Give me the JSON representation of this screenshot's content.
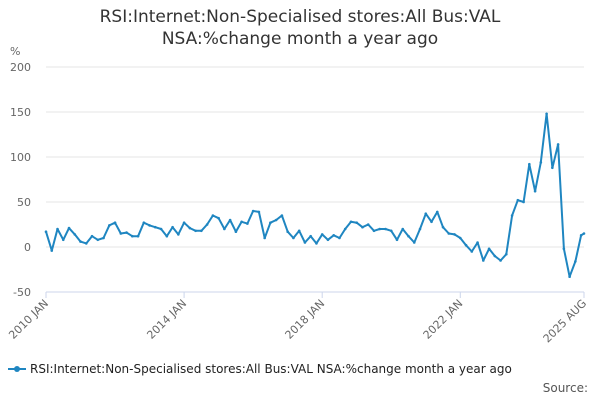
{
  "chart_data": {
    "type": "line",
    "title_line1": "RSI:Internet:Non-Specialised stores:All Bus:VAL",
    "title_line2": "NSA:%change month a year ago",
    "ylabel": "%",
    "ylim": [
      -50,
      200
    ],
    "yticks": [
      -50,
      0,
      50,
      100,
      150,
      200
    ],
    "xlim": [
      "2010-01",
      "2025-08"
    ],
    "xticks": [
      {
        "label": "2010 JAN",
        "date": "2010-01"
      },
      {
        "label": "2014 JAN",
        "date": "2014-01"
      },
      {
        "label": "2018 JAN",
        "date": "2018-01"
      },
      {
        "label": "2022 JAN",
        "date": "2022-01"
      },
      {
        "label": "2025 AUG",
        "date": "2025-08"
      }
    ],
    "grid": true,
    "legend_position": "bottom-left",
    "series": [
      {
        "name": "RSI:Internet:Non-Specialised stores:All Bus:VAL NSA:%change month a year ago",
        "color": "#1f86c1",
        "points": [
          [
            "2010-01",
            17
          ],
          [
            "2010-03",
            -4
          ],
          [
            "2010-05",
            20
          ],
          [
            "2010-07",
            8
          ],
          [
            "2010-09",
            21
          ],
          [
            "2010-11",
            14
          ],
          [
            "2011-01",
            6
          ],
          [
            "2011-03",
            4
          ],
          [
            "2011-05",
            12
          ],
          [
            "2011-07",
            8
          ],
          [
            "2011-09",
            10
          ],
          [
            "2011-11",
            24
          ],
          [
            "2012-01",
            27
          ],
          [
            "2012-03",
            15
          ],
          [
            "2012-05",
            16
          ],
          [
            "2012-07",
            12
          ],
          [
            "2012-09",
            12
          ],
          [
            "2012-11",
            27
          ],
          [
            "2013-01",
            24
          ],
          [
            "2013-03",
            22
          ],
          [
            "2013-05",
            20
          ],
          [
            "2013-07",
            12
          ],
          [
            "2013-09",
            22
          ],
          [
            "2013-11",
            14
          ],
          [
            "2014-01",
            27
          ],
          [
            "2014-03",
            21
          ],
          [
            "2014-05",
            18
          ],
          [
            "2014-07",
            18
          ],
          [
            "2014-09",
            25
          ],
          [
            "2014-11",
            35
          ],
          [
            "2015-01",
            32
          ],
          [
            "2015-03",
            20
          ],
          [
            "2015-05",
            30
          ],
          [
            "2015-07",
            17
          ],
          [
            "2015-09",
            28
          ],
          [
            "2015-11",
            26
          ],
          [
            "2016-01",
            40
          ],
          [
            "2016-03",
            39
          ],
          [
            "2016-05",
            10
          ],
          [
            "2016-07",
            27
          ],
          [
            "2016-09",
            30
          ],
          [
            "2016-11",
            35
          ],
          [
            "2017-01",
            17
          ],
          [
            "2017-03",
            10
          ],
          [
            "2017-05",
            18
          ],
          [
            "2017-07",
            5
          ],
          [
            "2017-09",
            12
          ],
          [
            "2017-11",
            4
          ],
          [
            "2018-01",
            14
          ],
          [
            "2018-03",
            8
          ],
          [
            "2018-05",
            13
          ],
          [
            "2018-07",
            10
          ],
          [
            "2018-09",
            20
          ],
          [
            "2018-11",
            28
          ],
          [
            "2019-01",
            27
          ],
          [
            "2019-03",
            22
          ],
          [
            "2019-05",
            25
          ],
          [
            "2019-07",
            18
          ],
          [
            "2019-09",
            20
          ],
          [
            "2019-11",
            20
          ],
          [
            "2020-01",
            18
          ],
          [
            "2020-03",
            8
          ],
          [
            "2020-05",
            20
          ],
          [
            "2020-07",
            12
          ],
          [
            "2020-09",
            5
          ],
          [
            "2020-11",
            20
          ],
          [
            "2021-01",
            37
          ],
          [
            "2021-03",
            28
          ],
          [
            "2021-05",
            39
          ],
          [
            "2021-07",
            22
          ],
          [
            "2021-09",
            15
          ],
          [
            "2021-11",
            14
          ],
          [
            "2022-01",
            10
          ],
          [
            "2022-03",
            2
          ],
          [
            "2022-05",
            -5
          ],
          [
            "2022-07",
            5
          ],
          [
            "2022-09",
            -15
          ],
          [
            "2022-11",
            -2
          ],
          [
            "2023-01",
            -10
          ],
          [
            "2023-03",
            -15
          ],
          [
            "2023-05",
            -8
          ],
          [
            "2023-07",
            35
          ],
          [
            "2023-09",
            52
          ],
          [
            "2023-11",
            50
          ],
          [
            "2024-01",
            92
          ],
          [
            "2024-03",
            62
          ],
          [
            "2024-05",
            94
          ],
          [
            "2024-07",
            148
          ],
          [
            "2024-09",
            88
          ],
          [
            "2024-11",
            114
          ],
          [
            "2025-01",
            -2
          ],
          [
            "2025-03",
            -33
          ],
          [
            "2025-05",
            -16
          ],
          [
            "2025-07",
            13
          ],
          [
            "2025-08",
            15
          ]
        ]
      }
    ]
  },
  "source_label": "Source:"
}
